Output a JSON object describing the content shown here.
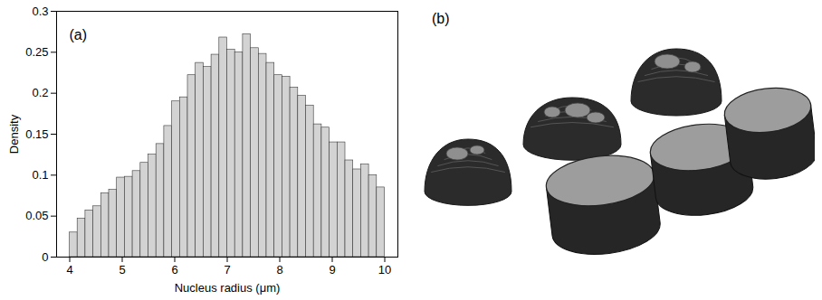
{
  "chart_data": {
    "type": "histogram",
    "xlabel": "Nucleus radius (μm)",
    "ylabel": "Density",
    "annotations": [
      "(a)"
    ],
    "bins": [
      4,
      4.15,
      4.3,
      4.45,
      4.6,
      4.75,
      4.9,
      5.05,
      5.2,
      5.35,
      5.5,
      5.65,
      5.8,
      5.95,
      6.1,
      6.25,
      6.4,
      6.55,
      6.7,
      6.85,
      7,
      7.15,
      7.3,
      7.45,
      7.6,
      7.75,
      7.9,
      8.05,
      8.2,
      8.35,
      8.5,
      8.65,
      8.8,
      8.95,
      9.1,
      9.25,
      9.4,
      9.55,
      9.7,
      9.85,
      10
    ],
    "values": [
      0.03,
      0.047,
      0.057,
      0.062,
      0.078,
      0.082,
      0.097,
      0.098,
      0.105,
      0.115,
      0.125,
      0.138,
      0.16,
      0.19,
      0.195,
      0.222,
      0.237,
      0.232,
      0.247,
      0.268,
      0.253,
      0.25,
      0.272,
      0.255,
      0.248,
      0.237,
      0.222,
      0.22,
      0.207,
      0.197,
      0.185,
      0.162,
      0.158,
      0.14,
      0.14,
      0.118,
      0.107,
      0.113,
      0.1,
      0.085
    ],
    "color": "#d3d3d3",
    "xlim": [
      3.75,
      10.25
    ],
    "xticks": [
      4,
      5,
      6,
      7,
      8,
      9,
      10
    ],
    "ylim": [
      0,
      0.3
    ],
    "yticks": [
      0,
      0.05,
      0.1,
      0.15,
      0.2,
      0.25,
      0.3
    ],
    "grid": false
  },
  "panel_b": {
    "label": "(b)"
  }
}
